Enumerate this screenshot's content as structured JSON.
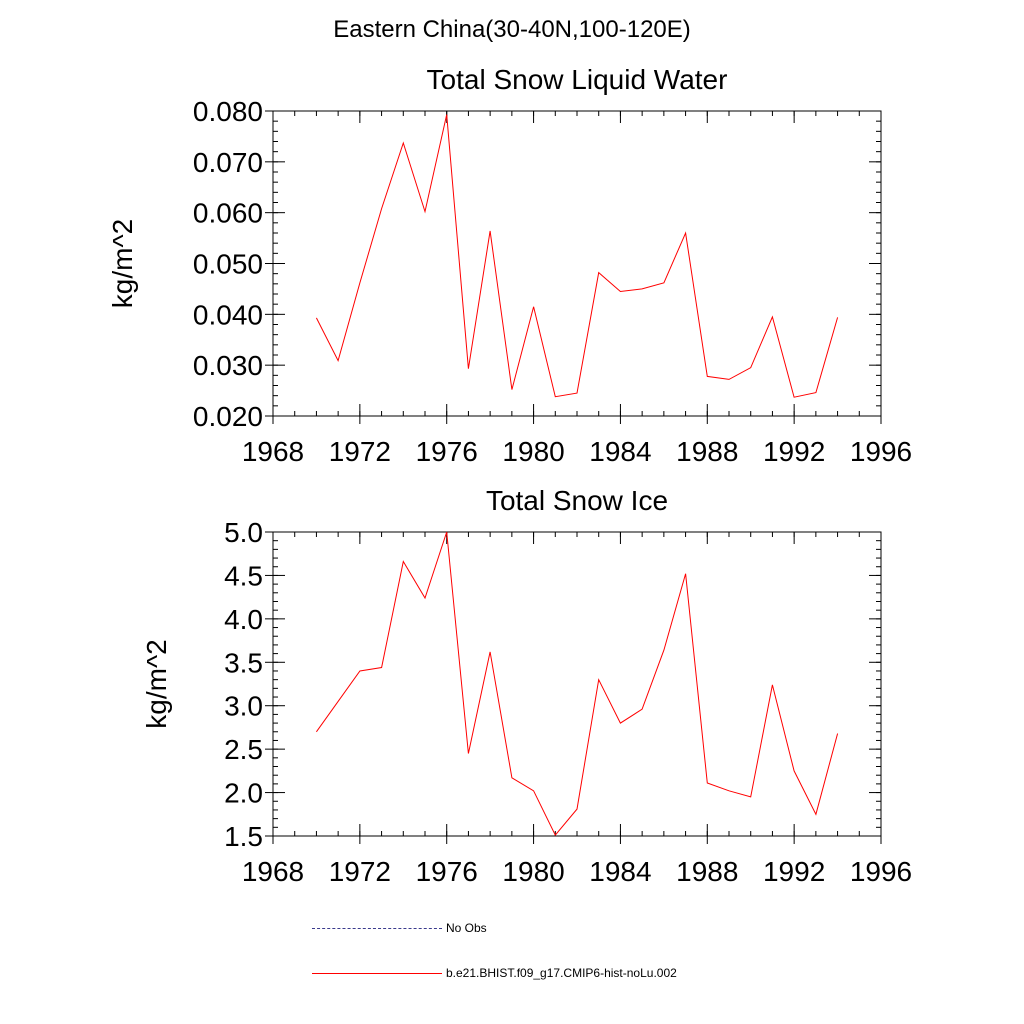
{
  "suptitle": "Eastern China(30-40N,100-120E)",
  "legend": {
    "items": [
      {
        "label": "No Obs",
        "style": "dashed",
        "color": "#3a3a8c"
      },
      {
        "label": "b.e21.BHIST.f09_g17.CMIP6-hist-noLu.002",
        "style": "solid",
        "color": "#ff0000"
      }
    ]
  },
  "chart_data": [
    {
      "type": "line",
      "title": "Total Snow Liquid Water",
      "ylabel": "kg/m^2",
      "xlabel": "",
      "xlim": [
        1968,
        1996
      ],
      "ylim": [
        0.02,
        0.08
      ],
      "xticks": [
        "1968",
        "1972",
        "1976",
        "1980",
        "1984",
        "1988",
        "1992",
        "1996"
      ],
      "yticks": [
        "0.020",
        "0.030",
        "0.040",
        "0.050",
        "0.060",
        "0.070",
        "0.080"
      ],
      "series": [
        {
          "color": "#ff0000",
          "x": [
            1970,
            1971,
            1972,
            1973,
            1974,
            1975,
            1976,
            1977,
            1978,
            1979,
            1980,
            1981,
            1982,
            1983,
            1984,
            1985,
            1986,
            1987,
            1988,
            1989,
            1990,
            1991,
            1992,
            1993,
            1994
          ],
          "values": [
            0.0393,
            0.0309,
            0.0462,
            0.0608,
            0.0737,
            0.0602,
            0.0793,
            0.0293,
            0.0564,
            0.0252,
            0.0415,
            0.0238,
            0.0245,
            0.0482,
            0.0445,
            0.045,
            0.0462,
            0.056,
            0.0278,
            0.0272,
            0.0295,
            0.0395,
            0.0237,
            0.0246,
            0.0394
          ]
        }
      ]
    },
    {
      "type": "line",
      "title": "Total Snow Ice",
      "ylabel": "kg/m^2",
      "xlabel": "",
      "xlim": [
        1968,
        1996
      ],
      "ylim": [
        1.5,
        5.0
      ],
      "xticks": [
        "1968",
        "1972",
        "1976",
        "1980",
        "1984",
        "1988",
        "1992",
        "1996"
      ],
      "yticks": [
        "1.5",
        "2.0",
        "2.5",
        "3.0",
        "3.5",
        "4.0",
        "4.5",
        "5.0"
      ],
      "series": [
        {
          "color": "#ff0000",
          "x": [
            1970,
            1971,
            1972,
            1973,
            1974,
            1975,
            1976,
            1977,
            1978,
            1979,
            1980,
            1981,
            1982,
            1983,
            1984,
            1985,
            1986,
            1987,
            1988,
            1989,
            1990,
            1991,
            1992,
            1993,
            1994
          ],
          "values": [
            2.7,
            3.05,
            3.4,
            3.44,
            4.66,
            4.24,
            5.0,
            2.45,
            3.62,
            2.17,
            2.02,
            1.51,
            1.81,
            3.3,
            2.8,
            2.96,
            3.64,
            4.52,
            2.11,
            2.02,
            1.95,
            3.24,
            2.25,
            1.75,
            2.68
          ]
        }
      ]
    }
  ]
}
